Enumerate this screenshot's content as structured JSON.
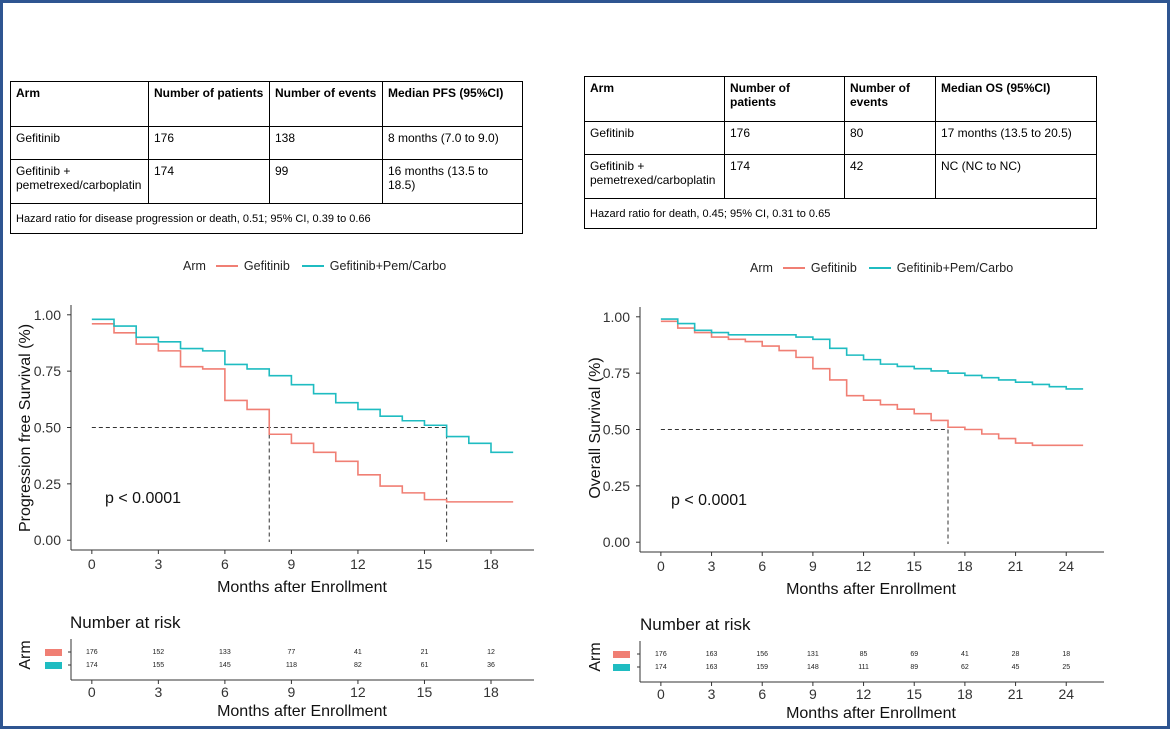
{
  "colors": {
    "gefitinib": "#f07f74",
    "combo": "#1fbcc1",
    "frame": "#2e5591"
  },
  "tables": [
    {
      "header": [
        "Arm",
        "Number of patients",
        "Number of events",
        "Median PFS (95%CI)"
      ],
      "rows": [
        [
          "Gefitinib",
          "176",
          "138",
          "8 months (7.0 to 9.0)"
        ],
        [
          "Gefitinib + pemetrexed/carboplatin",
          "174",
          "99",
          "16 months (13.5 to 18.5)"
        ]
      ],
      "note": "Hazard ratio for disease progression or death, 0.51; 95% CI, 0.39 to 0.66"
    },
    {
      "header": [
        "Arm",
        "Number of patients",
        "Number of events",
        "Median OS (95%CI)"
      ],
      "rows": [
        [
          "Gefitinib",
          "176",
          "80",
          "17 months (13.5 to 20.5)"
        ],
        [
          "Gefitinib + pemetrexed/carboplatin",
          "174",
          "42",
          "NC (NC to NC)"
        ]
      ],
      "note": "Hazard ratio for death, 0.45; 95% CI, 0.31 to 0.65"
    }
  ],
  "chart_data": [
    {
      "type": "line",
      "step": true,
      "legend_title": "Arm",
      "legend_position": "top",
      "series": [
        {
          "name": "Gefitinib",
          "color": "#f07f74",
          "points": [
            [
              0,
              0.96
            ],
            [
              1,
              0.92
            ],
            [
              2,
              0.87
            ],
            [
              3,
              0.84
            ],
            [
              4,
              0.77
            ],
            [
              5,
              0.76
            ],
            [
              6,
              0.62
            ],
            [
              7,
              0.58
            ],
            [
              8,
              0.47
            ],
            [
              9,
              0.43
            ],
            [
              10,
              0.39
            ],
            [
              11,
              0.35
            ],
            [
              12,
              0.29
            ],
            [
              13,
              0.24
            ],
            [
              14,
              0.21
            ],
            [
              15,
              0.18
            ],
            [
              16,
              0.17
            ],
            [
              19,
              0.17
            ]
          ]
        },
        {
          "name": "Gefitinib+Pem/Carbo",
          "color": "#1fbcc1",
          "points": [
            [
              0,
              0.98
            ],
            [
              1,
              0.95
            ],
            [
              2,
              0.9
            ],
            [
              3,
              0.88
            ],
            [
              4,
              0.85
            ],
            [
              5,
              0.84
            ],
            [
              6,
              0.78
            ],
            [
              7,
              0.76
            ],
            [
              8,
              0.73
            ],
            [
              9,
              0.69
            ],
            [
              10,
              0.65
            ],
            [
              11,
              0.61
            ],
            [
              12,
              0.58
            ],
            [
              13,
              0.55
            ],
            [
              14,
              0.53
            ],
            [
              15,
              0.51
            ],
            [
              16,
              0.46
            ],
            [
              17,
              0.43
            ],
            [
              18,
              0.39
            ],
            [
              19,
              0.39
            ]
          ]
        }
      ],
      "ylabel": "Progression free Survival (%)",
      "xlabel": "Months after Enrollment",
      "xlim": [
        0,
        19
      ],
      "ylim": [
        0,
        1
      ],
      "x_ticks": [
        0,
        3,
        6,
        9,
        12,
        15,
        18
      ],
      "y_ticks": [
        "0.00",
        "0.25",
        "0.50",
        "0.75",
        "1.00"
      ],
      "annotation": "p < 0.0001",
      "medians": [
        8,
        16
      ],
      "risk_table": {
        "title": "Number at risk",
        "ylabel": "Arm",
        "xlabel": "Months after Enrollment",
        "x": [
          0,
          3,
          6,
          9,
          12,
          15,
          18
        ],
        "rows": [
          {
            "series": "Gefitinib",
            "values": [
              "176",
              "152",
              "133",
              "77",
              "41",
              "21",
              "12"
            ]
          },
          {
            "series": "Gefitinib+Pem/Carbo",
            "values": [
              "174",
              "155",
              "145",
              "118",
              "82",
              "61",
              "36"
            ]
          }
        ]
      }
    },
    {
      "type": "line",
      "step": true,
      "legend_title": "Arm",
      "legend_position": "top",
      "series": [
        {
          "name": "Gefitinib",
          "color": "#f07f74",
          "points": [
            [
              0,
              0.98
            ],
            [
              1,
              0.95
            ],
            [
              2,
              0.93
            ],
            [
              3,
              0.91
            ],
            [
              4,
              0.9
            ],
            [
              5,
              0.89
            ],
            [
              6,
              0.87
            ],
            [
              7,
              0.85
            ],
            [
              8,
              0.82
            ],
            [
              9,
              0.77
            ],
            [
              10,
              0.72
            ],
            [
              11,
              0.65
            ],
            [
              12,
              0.63
            ],
            [
              13,
              0.61
            ],
            [
              14,
              0.59
            ],
            [
              15,
              0.57
            ],
            [
              16,
              0.54
            ],
            [
              17,
              0.51
            ],
            [
              18,
              0.5
            ],
            [
              19,
              0.48
            ],
            [
              20,
              0.46
            ],
            [
              21,
              0.44
            ],
            [
              22,
              0.43
            ],
            [
              25,
              0.43
            ]
          ]
        },
        {
          "name": "Gefitinib+Pem/Carbo",
          "color": "#1fbcc1",
          "points": [
            [
              0,
              0.99
            ],
            [
              1,
              0.97
            ],
            [
              2,
              0.94
            ],
            [
              3,
              0.93
            ],
            [
              4,
              0.92
            ],
            [
              8,
              0.91
            ],
            [
              9,
              0.9
            ],
            [
              10,
              0.86
            ],
            [
              11,
              0.83
            ],
            [
              12,
              0.81
            ],
            [
              13,
              0.79
            ],
            [
              14,
              0.78
            ],
            [
              15,
              0.77
            ],
            [
              16,
              0.76
            ],
            [
              17,
              0.75
            ],
            [
              18,
              0.74
            ],
            [
              19,
              0.73
            ],
            [
              20,
              0.72
            ],
            [
              21,
              0.71
            ],
            [
              22,
              0.7
            ],
            [
              23,
              0.69
            ],
            [
              24,
              0.68
            ],
            [
              25,
              0.68
            ]
          ]
        }
      ],
      "ylabel": "Overall Survival (%)",
      "xlabel": "Months after Enrollment",
      "xlim": [
        0,
        25
      ],
      "ylim": [
        0,
        1
      ],
      "x_ticks": [
        0,
        3,
        6,
        9,
        12,
        15,
        18,
        21,
        24
      ],
      "y_ticks": [
        "0.00",
        "0.25",
        "0.50",
        "0.75",
        "1.00"
      ],
      "annotation": "p < 0.0001",
      "medians": [
        17
      ],
      "risk_table": {
        "title": "Number at risk",
        "ylabel": "Arm",
        "xlabel": "Months after Enrollment",
        "x": [
          0,
          3,
          6,
          9,
          12,
          15,
          18,
          21,
          24
        ],
        "rows": [
          {
            "series": "Gefitinib",
            "values": [
              "176",
              "163",
              "156",
              "131",
              "85",
              "69",
              "41",
              "28",
              "18"
            ]
          },
          {
            "series": "Gefitinib+Pem/Carbo",
            "values": [
              "174",
              "163",
              "159",
              "148",
              "111",
              "89",
              "62",
              "45",
              "25"
            ]
          }
        ]
      }
    }
  ]
}
